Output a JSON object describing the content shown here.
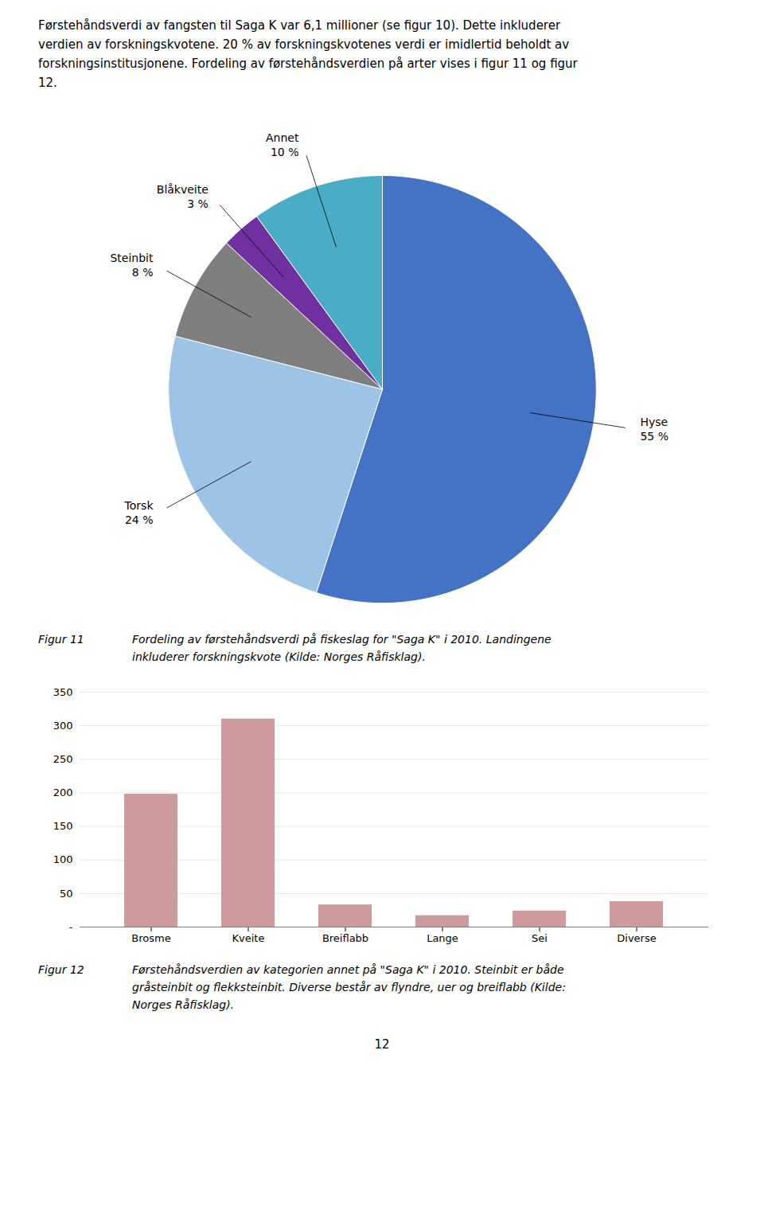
{
  "chart_data": [
    {
      "type": "pie",
      "annotations": [
        "Førstehåndsverdi av fangsten til Saga K var 6,1 millioner (se figur 10). Dette inkluderer",
        "verdien av forskningskvotene. 20 % av forskningskvotenes verdi er imidlertid beholdt av",
        "forskningsinstitusjonene.  Fordeling av førstehåndsverdien på arter vises i figur 11 og figur",
        "12."
      ],
      "categories": [
        "Hyse",
        "Torsk",
        "Steinbit",
        "Blåkveite",
        "Annet"
      ],
      "values": [
        55,
        24,
        8,
        3,
        10
      ],
      "value_labels": [
        "55 %",
        "24 %",
        "8 %",
        "3 %",
        "10 %"
      ],
      "data_labels": true,
      "colors": [
        "#4472C4",
        "#9DC3E6",
        "#7F7F7F",
        "#7030A0",
        "#4BACC6"
      ],
      "caption": [
        "Figur 11",
        "Fordeling av førstehåndsverdi på fiskeslag for \"Saga K\" i 2010. Landingene\ninkluderer forskningskvote (Kilde: Norges Råfisklag)."
      ]
    },
    {
      "type": "bar",
      "categories": [
        "Brosme",
        "Kveite",
        "Breiflabb",
        "Lange",
        "Sei",
        "Diverse"
      ],
      "values": [
        198,
        310,
        33,
        17,
        24,
        38
      ],
      "color": "#CD9B9B",
      "ylim": [
        0,
        350
      ],
      "yticks": [
        {
          "value": 0,
          "label": "-"
        },
        50,
        100,
        150,
        200,
        250,
        300,
        350
      ],
      "grid": true,
      "caption": [
        "Figur 12",
        "Førstehåndsverdien av kategorien annet på \"Saga K\" i 2010. Steinbit er både\ngråsteinbit og flekksteinbit. Diverse består av flyndre, uer og breiflabb (Kilde:\nNorges Råfisklag)."
      ],
      "annotations": [
        "12"
      ]
    }
  ]
}
